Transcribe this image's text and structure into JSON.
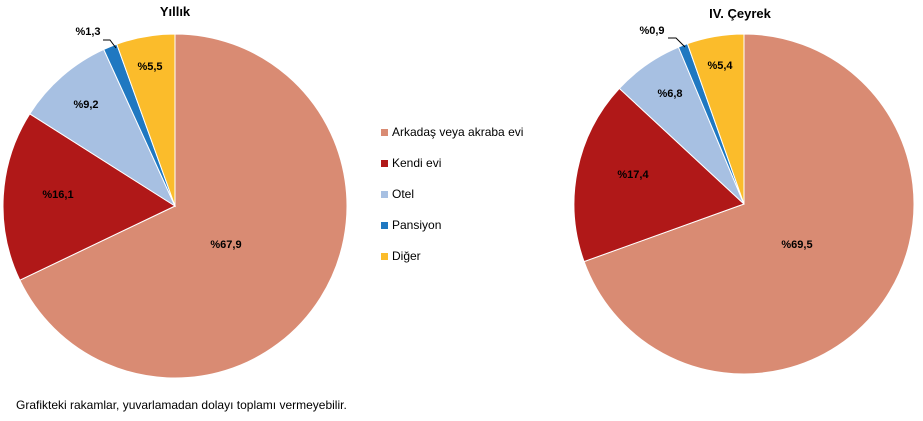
{
  "chart_data": [
    {
      "type": "pie",
      "title": "Yıllık",
      "categories": [
        "Arkadaş veya akraba evi",
        "Kendi evi",
        "Otel",
        "Pansiyon",
        "Diğer"
      ],
      "values": [
        67.9,
        16.1,
        9.2,
        1.3,
        5.5
      ],
      "labels": [
        "%67,9",
        "%16,1",
        "%9,2",
        "%1,3",
        "%5,5"
      ],
      "colors": [
        "#d98b73",
        "#b01818",
        "#a7c0e2",
        "#1f78c1",
        "#fbbc2b"
      ]
    },
    {
      "type": "pie",
      "title": "IV. Çeyrek",
      "categories": [
        "Arkadaş veya akraba evi",
        "Kendi evi",
        "Otel",
        "Pansiyon",
        "Diğer"
      ],
      "values": [
        69.5,
        17.4,
        6.8,
        0.9,
        5.4
      ],
      "labels": [
        "%69,5",
        "%17,4",
        "%6,8",
        "%0,9",
        "%5,4"
      ],
      "colors": [
        "#d98b73",
        "#b01818",
        "#a7c0e2",
        "#1f78c1",
        "#fbbc2b"
      ]
    }
  ],
  "legend": {
    "position": "center",
    "items": [
      {
        "label": "Arkadaş veya akraba evi",
        "color": "#d98b73"
      },
      {
        "label": "Kendi evi",
        "color": "#b01818"
      },
      {
        "label": "Otel",
        "color": "#a7c0e2"
      },
      {
        "label": "Pansiyon",
        "color": "#1f78c1"
      },
      {
        "label": "Diğer",
        "color": "#fbbc2b"
      }
    ]
  },
  "footnote": "Grafikteki rakamlar, yuvarlamadan dolayı toplamı vermeyebilir."
}
